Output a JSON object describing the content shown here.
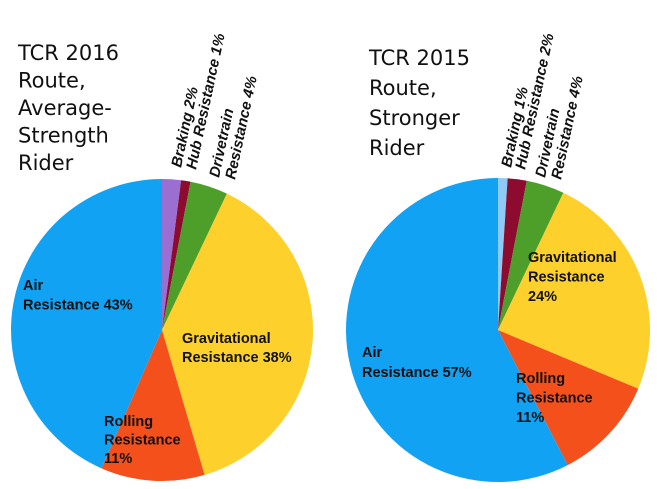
{
  "chart_data": [
    {
      "type": "pie",
      "title": [
        "TCR 2016",
        "Route,",
        "Average-",
        "Strength",
        "Rider"
      ],
      "start": "12 o'clock, clockwise",
      "slices": [
        {
          "name": "Braking",
          "value": 2,
          "color": "#9b6fd2",
          "label": [
            "Braking 2%"
          ],
          "label_style": "rotated-outside"
        },
        {
          "name": "Hub Resistance",
          "value": 1,
          "color": "#8c0b2e",
          "label": [
            "Hub Resistance 1%"
          ],
          "label_style": "rotated-outside"
        },
        {
          "name": "Drivetrain Resistance",
          "value": 4,
          "color": "#4e9f2a",
          "label": [
            "Drivetrain",
            "Resistance 4%"
          ],
          "label_style": "rotated-outside"
        },
        {
          "name": "Gravitational Resistance",
          "value": 38,
          "color": "#fdd02c",
          "label": [
            "Gravitational",
            "Resistance 38%"
          ],
          "label_style": "inside"
        },
        {
          "name": "Rolling Resistance",
          "value": 11,
          "color": "#f4501c",
          "label": [
            "Rolling",
            "Resistance",
            "11%"
          ],
          "label_style": "inside"
        },
        {
          "name": "Air Resistance",
          "value": 43,
          "color": "#12a2f4",
          "label": [
            "Air",
            "Resistance 43%"
          ],
          "label_style": "inside"
        }
      ]
    },
    {
      "type": "pie",
      "title": [
        "TCR 2015",
        "Route,",
        "Stronger",
        "Rider"
      ],
      "start": "12 o'clock, clockwise",
      "slices": [
        {
          "name": "Braking",
          "value": 1,
          "color": "#8fcaf6",
          "label": [
            "Braking 1%"
          ],
          "label_style": "rotated-outside"
        },
        {
          "name": "Hub Resistance",
          "value": 2,
          "color": "#8c0b2e",
          "label": [
            "Hub Resistance 2%"
          ],
          "label_style": "rotated-outside"
        },
        {
          "name": "Drivetrain Resistance",
          "value": 4,
          "color": "#4e9f2a",
          "label": [
            "Drivetrain",
            "Resistance 4%"
          ],
          "label_style": "rotated-outside"
        },
        {
          "name": "Gravitational Resistance",
          "value": 24,
          "color": "#fdd02c",
          "label": [
            "Gravitational",
            "Resistance",
            "24%"
          ],
          "label_style": "inside"
        },
        {
          "name": "Rolling Resistance",
          "value": 11,
          "color": "#f4501c",
          "label": [
            "Rolling",
            "Resistance",
            "11%"
          ],
          "label_style": "inside"
        },
        {
          "name": "Air Resistance",
          "value": 57,
          "color": "#12a2f4",
          "label": [
            "Air",
            "Resistance 57%"
          ],
          "label_style": "inside"
        }
      ]
    }
  ]
}
